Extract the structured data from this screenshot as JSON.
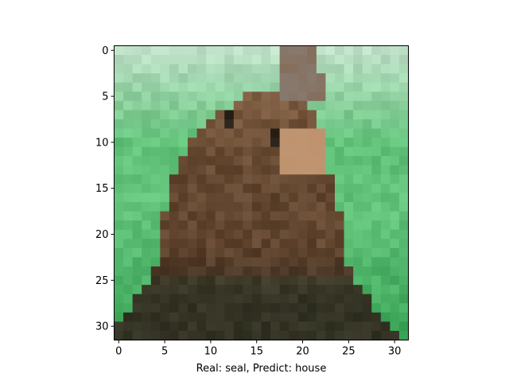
{
  "chart_data": {
    "type": "heatmap",
    "title": "",
    "xlabel": "Real: seal, Predict: house",
    "ylabel": "",
    "xlim": [
      -0.5,
      31.5
    ],
    "ylim": [
      31.5,
      -0.5
    ],
    "x_ticks": [
      0,
      5,
      10,
      15,
      20,
      25,
      30
    ],
    "y_ticks": [
      0,
      5,
      10,
      15,
      20,
      25,
      30
    ],
    "grid": false,
    "image_size": [
      32,
      32
    ],
    "content": "pixel image of a seal"
  },
  "colors": {
    "background_top": "#bfe0c8",
    "background_green": "#62c27a",
    "background_dark_green": "#2f9c4c",
    "seal_brown": "#5a3f2a",
    "seal_light": "#a07a58",
    "seal_dark": "#2a2118",
    "seal_snout": "#c79a76"
  }
}
